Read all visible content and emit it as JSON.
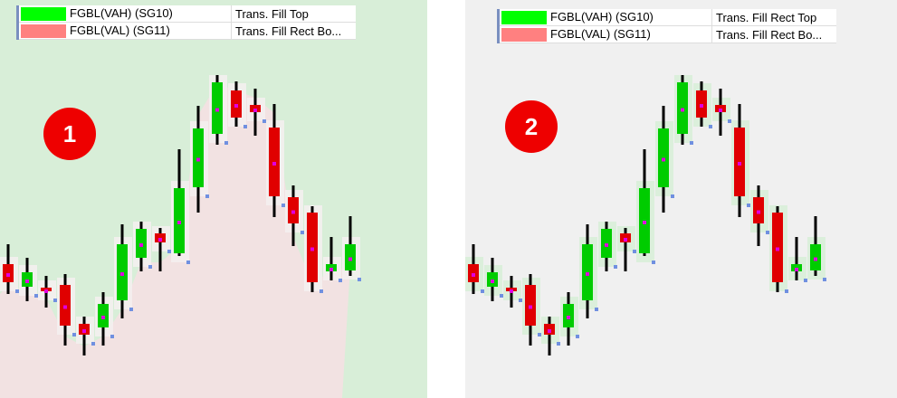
{
  "panels": [
    {
      "badge": "1",
      "legend": [
        {
          "name": "FGBL(VAH) (SG10)",
          "description": "Trans. Fill Top",
          "color": "#00ff00"
        },
        {
          "name": "FGBL(VAL) (SG11)",
          "description": "Trans. Fill Rect Bo...",
          "color": "#ff8080"
        }
      ]
    },
    {
      "badge": "2",
      "legend": [
        {
          "name": "FGBL(VAH) (SG10)",
          "description": "Trans. Fill Rect Top",
          "color": "#00ff00"
        },
        {
          "name": "FGBL(VAL) (SG11)",
          "description": "Trans. Fill Rect Bo...",
          "color": "#ff8080"
        }
      ]
    }
  ]
}
